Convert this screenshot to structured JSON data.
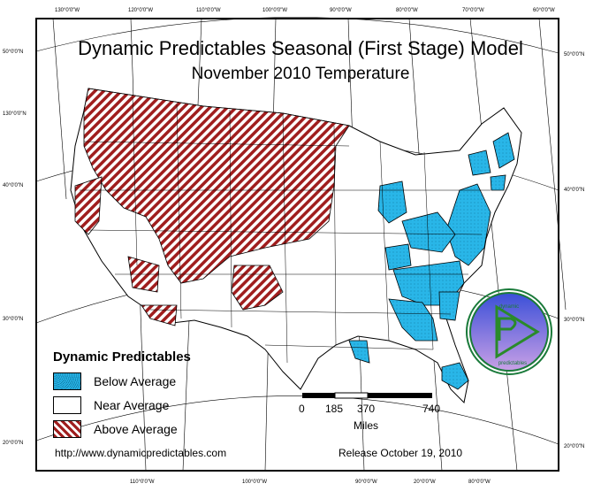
{
  "title": "Dynamic Predictables Seasonal (First Stage) Model",
  "subtitle": "November 2010 Temperature",
  "legend": {
    "title": "Dynamic Predictables",
    "items": [
      {
        "label": "Below Average",
        "color": "#29b6e8"
      },
      {
        "label": "Near Average",
        "color": "#ffffff"
      },
      {
        "label": "Above Average",
        "color": "#a01e1e"
      }
    ]
  },
  "scale": {
    "ticks": [
      "0",
      "185",
      "370",
      "740"
    ],
    "unit": "Miles"
  },
  "footer": {
    "url": "http://www.dynamicpredictables.com",
    "release": "Release October 19, 2010"
  },
  "logo": {
    "top_text": "dynamic",
    "bottom_text": "predictables",
    "ring_color": "#1a7a3a",
    "disk_top_color": "#3a4fd8",
    "disk_bottom_color": "#c9a0e6",
    "play_color": "#2a8a2a"
  },
  "graticule": {
    "top": [
      "130°0'0\"W",
      "120°0'0\"W",
      "110°0'0\"W",
      "100°0'0\"W",
      "90°0'0\"W",
      "80°0'0\"W",
      "70°0'0\"W",
      "60°0'0\"W"
    ],
    "bottom": [
      "110°0'0\"W",
      "100°0'0\"W",
      "90°0'0\"W",
      "20°0'0\"W",
      "80°0'0\"W"
    ],
    "left": [
      "50°0'0\"N",
      "130°0'0\"N",
      "40°0'0\"N",
      "30°0'0\"N",
      "20°0'0\"N"
    ],
    "right": [
      "50°0'0\"N",
      "40°0'0\"N",
      "30°0'0\"N",
      "20°0'0\"N"
    ]
  },
  "colors": {
    "above": "#a01e1e",
    "below": "#29b6e8",
    "near": "#ffffff",
    "boundary": "#000000"
  }
}
